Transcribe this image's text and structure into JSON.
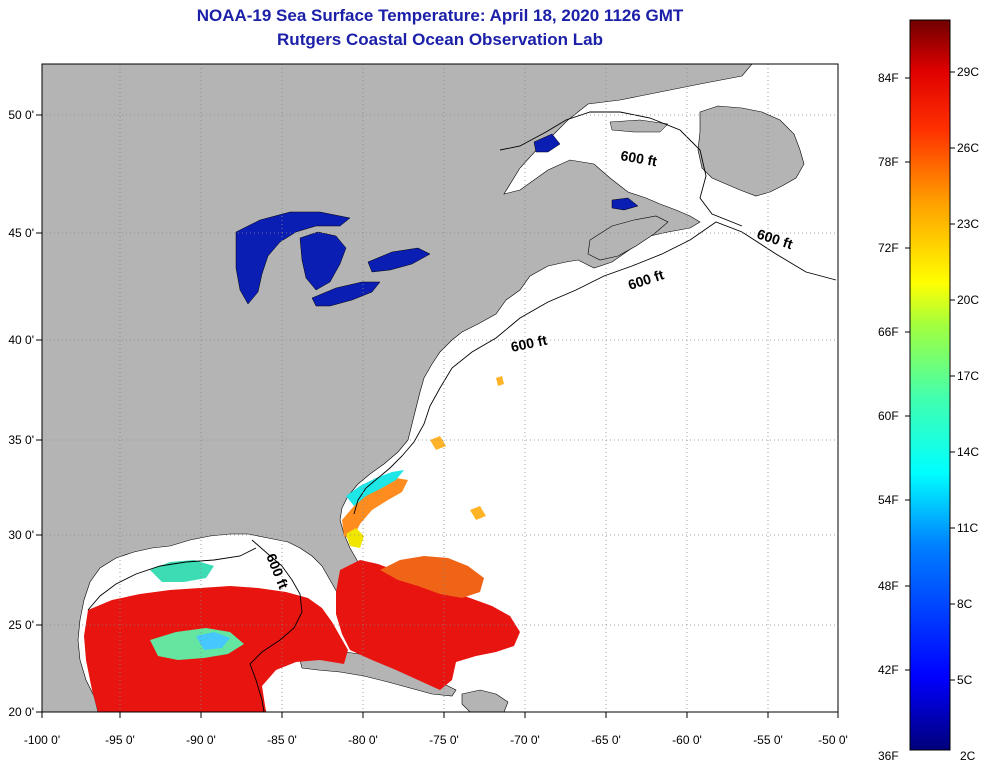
{
  "title": "NOAA-19 Sea Surface Temperature:  April 18, 2020 1126 GMT",
  "subtitle": "Rutgers Coastal Ocean Observation Lab",
  "lat_ticks": [
    {
      "lat": 50,
      "label": "50 0'"
    },
    {
      "lat": 45,
      "label": "45 0'"
    },
    {
      "lat": 40,
      "label": "40 0'"
    },
    {
      "lat": 35,
      "label": "35 0'"
    },
    {
      "lat": 30,
      "label": "30 0'"
    },
    {
      "lat": 25,
      "label": "25 0'"
    },
    {
      "lat": 20,
      "label": "20 0'"
    }
  ],
  "lon_ticks": [
    {
      "lon": -100,
      "label": "-100 0'"
    },
    {
      "lon": -95,
      "label": "-95 0'"
    },
    {
      "lon": -90,
      "label": "-90 0'"
    },
    {
      "lon": -85,
      "label": "-85 0'"
    },
    {
      "lon": -80,
      "label": "-80 0'"
    },
    {
      "lon": -75,
      "label": "-75 0'"
    },
    {
      "lon": -70,
      "label": "-70 0'"
    },
    {
      "lon": -65,
      "label": "-65 0'"
    },
    {
      "lon": -60,
      "label": "-60 0'"
    },
    {
      "lon": -55,
      "label": "-55 0'"
    },
    {
      "lon": -50,
      "label": "-50 0'"
    }
  ],
  "contour_labels": [
    "600 ft",
    "600 ft",
    "600 ft",
    "600 ft",
    "600 ft"
  ],
  "colorbar": {
    "fahrenheit": [
      "84F",
      "78F",
      "72F",
      "66F",
      "60F",
      "54F",
      "48F",
      "42F",
      "36F"
    ],
    "celsius": [
      "29C",
      "26C",
      "23C",
      "20C",
      "17C",
      "14C",
      "11C",
      "8C",
      "5C",
      "2C"
    ]
  },
  "colors": {
    "land": "#b4b4b4",
    "lakes": "#0a1eb4",
    "title": "#1c20a8",
    "warm": "#e8140f",
    "cloud": "#ffffff"
  }
}
